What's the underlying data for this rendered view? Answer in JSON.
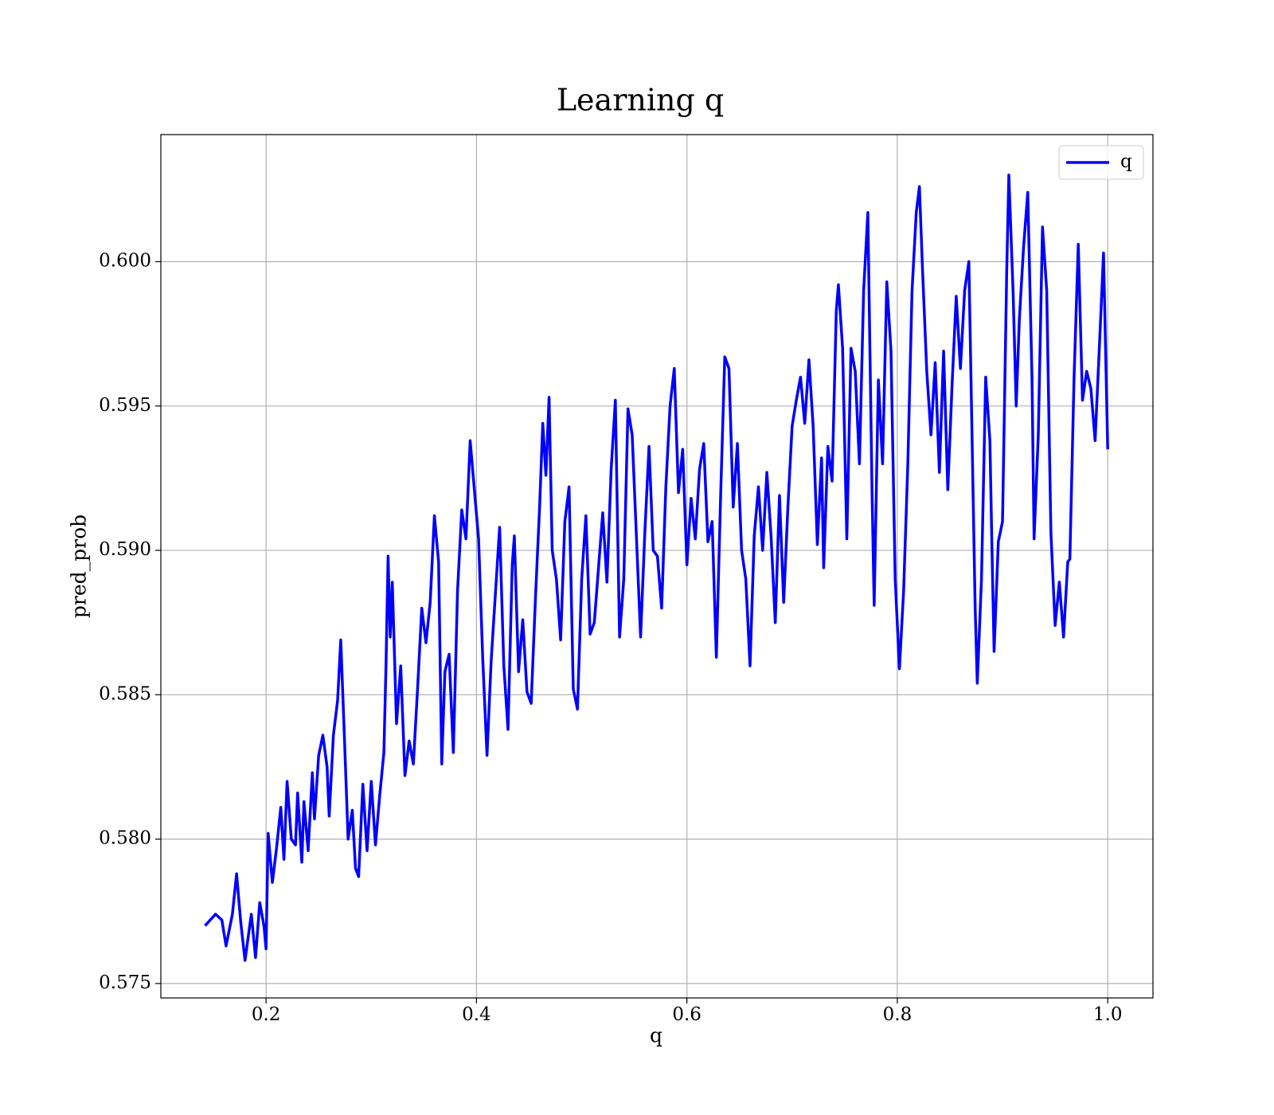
{
  "chart_data": {
    "type": "line",
    "title": "Learning q",
    "x_label": "q",
    "y_label": "pred_prob",
    "x": [
      0.142,
      0.152,
      0.158,
      0.162,
      0.168,
      0.172,
      0.176,
      0.18,
      0.186,
      0.19,
      0.194,
      0.198,
      0.2,
      0.202,
      0.206,
      0.21,
      0.214,
      0.217,
      0.22,
      0.224,
      0.228,
      0.23,
      0.234,
      0.236,
      0.24,
      0.244,
      0.246,
      0.25,
      0.254,
      0.258,
      0.26,
      0.264,
      0.268,
      0.271,
      0.274,
      0.278,
      0.282,
      0.285,
      0.288,
      0.292,
      0.296,
      0.3,
      0.304,
      0.308,
      0.312,
      0.314,
      0.316,
      0.318,
      0.32,
      0.324,
      0.328,
      0.332,
      0.336,
      0.34,
      0.344,
      0.348,
      0.352,
      0.356,
      0.36,
      0.364,
      0.367,
      0.37,
      0.374,
      0.378,
      0.382,
      0.386,
      0.39,
      0.394,
      0.398,
      0.402,
      0.406,
      0.41,
      0.414,
      0.418,
      0.422,
      0.426,
      0.43,
      0.434,
      0.436,
      0.44,
      0.444,
      0.448,
      0.452,
      0.456,
      0.46,
      0.463,
      0.466,
      0.469,
      0.472,
      0.476,
      0.48,
      0.484,
      0.488,
      0.492,
      0.496,
      0.5,
      0.504,
      0.508,
      0.512,
      0.516,
      0.52,
      0.524,
      0.528,
      0.532,
      0.536,
      0.54,
      0.544,
      0.548,
      0.552,
      0.556,
      0.56,
      0.564,
      0.568,
      0.572,
      0.576,
      0.58,
      0.584,
      0.588,
      0.592,
      0.596,
      0.6,
      0.604,
      0.608,
      0.612,
      0.616,
      0.62,
      0.624,
      0.628,
      0.632,
      0.636,
      0.64,
      0.644,
      0.648,
      0.652,
      0.656,
      0.66,
      0.664,
      0.668,
      0.672,
      0.676,
      0.68,
      0.684,
      0.688,
      0.692,
      0.696,
      0.7,
      0.704,
      0.708,
      0.712,
      0.716,
      0.72,
      0.724,
      0.728,
      0.73,
      0.734,
      0.738,
      0.742,
      0.744,
      0.748,
      0.752,
      0.756,
      0.76,
      0.764,
      0.768,
      0.772,
      0.776,
      0.778,
      0.782,
      0.786,
      0.79,
      0.794,
      0.798,
      0.802,
      0.806,
      0.81,
      0.814,
      0.818,
      0.821,
      0.824,
      0.828,
      0.832,
      0.836,
      0.84,
      0.844,
      0.848,
      0.852,
      0.856,
      0.86,
      0.864,
      0.868,
      0.87,
      0.874,
      0.876,
      0.88,
      0.884,
      0.888,
      0.89,
      0.892,
      0.896,
      0.9,
      0.904,
      0.906,
      0.91,
      0.913,
      0.916,
      0.92,
      0.924,
      0.928,
      0.93,
      0.934,
      0.938,
      0.942,
      0.946,
      0.95,
      0.954,
      0.958,
      0.962,
      0.964,
      0.968,
      0.972,
      0.976,
      0.98,
      0.984,
      0.988,
      0.992,
      0.996,
      1.0
    ],
    "series": [
      {
        "name": "q",
        "color": "#0000ff",
        "values": [
          0.577,
          0.5774,
          0.5772,
          0.5763,
          0.5774,
          0.5788,
          0.5771,
          0.5758,
          0.5774,
          0.5759,
          0.5778,
          0.577,
          0.5762,
          0.5802,
          0.5785,
          0.5797,
          0.5811,
          0.5793,
          0.582,
          0.58,
          0.5798,
          0.5816,
          0.5792,
          0.5813,
          0.5796,
          0.5823,
          0.5807,
          0.5829,
          0.5836,
          0.5825,
          0.5808,
          0.5836,
          0.5848,
          0.5869,
          0.584,
          0.58,
          0.581,
          0.579,
          0.5787,
          0.5819,
          0.5796,
          0.582,
          0.5798,
          0.5815,
          0.583,
          0.586,
          0.5898,
          0.587,
          0.5889,
          0.584,
          0.586,
          0.5822,
          0.5834,
          0.5826,
          0.5852,
          0.588,
          0.5868,
          0.5882,
          0.5912,
          0.5896,
          0.5826,
          0.5858,
          0.5864,
          0.583,
          0.5886,
          0.5914,
          0.5904,
          0.5938,
          0.5921,
          0.5904,
          0.5862,
          0.5829,
          0.5862,
          0.5885,
          0.5908,
          0.586,
          0.5838,
          0.5895,
          0.5905,
          0.5858,
          0.5876,
          0.5851,
          0.5847,
          0.5883,
          0.5915,
          0.5944,
          0.5926,
          0.5953,
          0.59,
          0.589,
          0.5869,
          0.591,
          0.5922,
          0.5852,
          0.5845,
          0.589,
          0.5912,
          0.5871,
          0.5875,
          0.5894,
          0.5913,
          0.5889,
          0.5928,
          0.5952,
          0.587,
          0.589,
          0.5949,
          0.594,
          0.5905,
          0.587,
          0.5906,
          0.5936,
          0.59,
          0.5898,
          0.588,
          0.5922,
          0.595,
          0.5963,
          0.592,
          0.5935,
          0.5895,
          0.5918,
          0.5904,
          0.5928,
          0.5937,
          0.5903,
          0.591,
          0.5863,
          0.5918,
          0.5967,
          0.5963,
          0.5915,
          0.5937,
          0.59,
          0.589,
          0.586,
          0.5905,
          0.5922,
          0.59,
          0.5927,
          0.5905,
          0.5875,
          0.5919,
          0.5882,
          0.5915,
          0.5943,
          0.5952,
          0.596,
          0.5944,
          0.5966,
          0.5943,
          0.5902,
          0.5932,
          0.5894,
          0.5936,
          0.5924,
          0.5983,
          0.5992,
          0.597,
          0.5904,
          0.597,
          0.5962,
          0.593,
          0.599,
          0.6017,
          0.592,
          0.5881,
          0.5959,
          0.593,
          0.5993,
          0.5969,
          0.589,
          0.5859,
          0.5886,
          0.593,
          0.599,
          0.6017,
          0.6026,
          0.5997,
          0.5962,
          0.594,
          0.5965,
          0.5927,
          0.5969,
          0.5921,
          0.5957,
          0.5988,
          0.5963,
          0.599,
          0.6,
          0.596,
          0.588,
          0.5854,
          0.589,
          0.596,
          0.5938,
          0.59,
          0.5865,
          0.5903,
          0.591,
          0.5997,
          0.603,
          0.599,
          0.595,
          0.598,
          0.6005,
          0.6024,
          0.596,
          0.5904,
          0.594,
          0.6012,
          0.599,
          0.5906,
          0.5874,
          0.5889,
          0.587,
          0.5896,
          0.5897,
          0.596,
          0.6006,
          0.5952,
          0.5962,
          0.5956,
          0.5938,
          0.597,
          0.6003,
          0.5935
        ]
      }
    ],
    "xlim": [
      0.1,
      1.043
    ],
    "ylim": [
      0.5745,
      0.6044
    ],
    "xticks": [
      0.2,
      0.4,
      0.6,
      0.8,
      {
        "value": 1.0,
        "label": "1.0"
      }
    ],
    "yticks": [
      0.575,
      {
        "value": 0.58,
        "label": "0.580"
      },
      0.585,
      {
        "value": 0.59,
        "label": "0.590"
      },
      0.595,
      {
        "value": 0.6,
        "label": "0.600"
      }
    ],
    "grid": true,
    "legend": "upper right"
  }
}
